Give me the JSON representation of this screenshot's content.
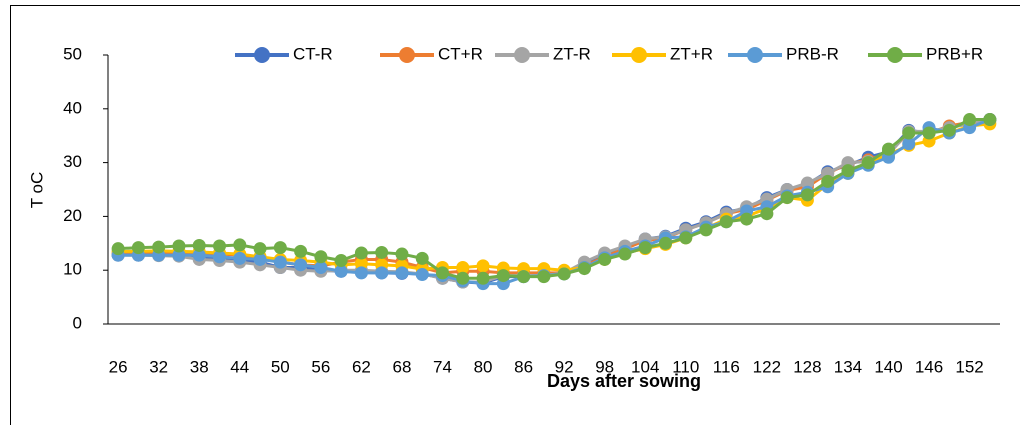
{
  "chart_data": {
    "type": "line",
    "y_label": "T oC",
    "x_label": "Days after sowing",
    "categories": [
      "26",
      null,
      "32",
      null,
      "38",
      null,
      "44",
      null,
      "50",
      null,
      "56",
      null,
      "62",
      null,
      "68",
      null,
      "74",
      null,
      "80",
      null,
      "86",
      null,
      "92",
      null,
      "98",
      null,
      "104",
      null,
      "110",
      null,
      "116",
      null,
      "122",
      null,
      "128",
      null,
      "134",
      null,
      "140",
      null,
      "146",
      null,
      "152",
      null
    ],
    "ylim": [
      0,
      50
    ],
    "yticks": [
      0,
      10,
      20,
      30,
      40,
      50
    ],
    "grid": false,
    "legend": "top",
    "series": [
      {
        "name": "CT-R",
        "color": "#4472c4",
        "values": [
          12.8,
          12.8,
          12.8,
          12.7,
          12.5,
          12.3,
          12,
          11.5,
          10.5,
          10.5,
          10,
          9.8,
          9.6,
          9.5,
          9.4,
          9.3,
          8.5,
          7.8,
          7.6,
          8.8,
          8.8,
          9,
          9.5,
          11,
          13,
          14.3,
          15.8,
          16.3,
          17.8,
          19,
          20.8,
          21.5,
          23.5,
          25,
          26,
          28.3,
          29.5,
          31,
          32,
          36,
          35.5,
          36.5,
          37.5,
          38
        ]
      },
      {
        "name": "CT+R",
        "color": "#ed7d31",
        "values": [
          13.2,
          13.2,
          13.3,
          13.3,
          13.2,
          13,
          12.8,
          12.3,
          11.5,
          11,
          10.8,
          11.5,
          12,
          12,
          11.5,
          10.5,
          9.5,
          9.8,
          9.8,
          9.5,
          9.5,
          9.5,
          9.5,
          10.8,
          12.5,
          14,
          15.5,
          16,
          17.5,
          18.8,
          20.5,
          21.3,
          23,
          24.8,
          25.5,
          28,
          29.8,
          30.5,
          31.8,
          35.5,
          35.5,
          36.8,
          37.5,
          38
        ]
      },
      {
        "name": "ZT-R",
        "color": "#a5a5a5",
        "values": [
          12.8,
          12.8,
          12.7,
          12.6,
          12,
          11.8,
          11.5,
          11,
          10.5,
          10,
          9.8,
          10,
          10,
          9.8,
          9.7,
          9.3,
          8.5,
          7.8,
          7.8,
          9,
          9,
          9,
          9.5,
          11.5,
          13.2,
          14.5,
          15.8,
          16.2,
          17.5,
          18.8,
          20.5,
          21.8,
          23.2,
          25,
          26.2,
          28,
          30,
          30.2,
          31.5,
          35.8,
          35.8,
          36.5,
          37.2,
          38
        ]
      },
      {
        "name": "ZT+R",
        "color": "#ffc000",
        "values": [
          13.5,
          13.5,
          13.6,
          13.5,
          13.4,
          13.2,
          13,
          12.5,
          12,
          11.8,
          11.5,
          11,
          11.2,
          11,
          10.8,
          10.2,
          10.5,
          10.5,
          10.8,
          10.4,
          10.3,
          10.3,
          10,
          10.5,
          12,
          13.2,
          14,
          14.8,
          16,
          17.8,
          19.5,
          20,
          21.5,
          23.5,
          23,
          26,
          28,
          29.8,
          31.5,
          33.2,
          34,
          35.5,
          36.8,
          37.2
        ]
      },
      {
        "name": "PRB-R",
        "color": "#5b9bd5",
        "values": [
          12.8,
          12.8,
          12.8,
          12.8,
          12.8,
          12.5,
          12.2,
          12,
          11.5,
          11,
          10.5,
          9.8,
          9.5,
          9.5,
          9.5,
          9.2,
          9,
          8,
          7.5,
          7.5,
          8.8,
          9,
          9.3,
          10.5,
          12.3,
          13.5,
          14.5,
          16,
          16.2,
          18,
          19,
          21,
          21.8,
          23.8,
          24.5,
          25.5,
          28,
          29.5,
          31,
          33.5,
          36.5,
          35.5,
          36.5,
          38
        ]
      },
      {
        "name": "PRB+R",
        "color": "#70ad47",
        "values": [
          14,
          14.2,
          14.3,
          14.5,
          14.6,
          14.5,
          14.7,
          14,
          14.2,
          13.5,
          12.5,
          11.8,
          13.2,
          13.3,
          13,
          12.2,
          9.5,
          8.5,
          8.5,
          9,
          8.8,
          8.8,
          9.3,
          10.3,
          12,
          13,
          14.2,
          15,
          16,
          17.5,
          19,
          19.5,
          20.5,
          23.5,
          24,
          26.5,
          28.5,
          30,
          32.5,
          35.5,
          35.5,
          36,
          38,
          38
        ]
      }
    ]
  }
}
